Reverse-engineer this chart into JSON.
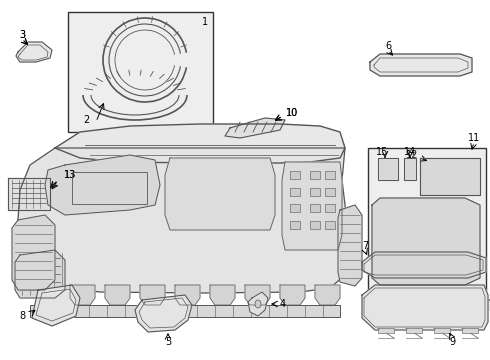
{
  "bg": "#ffffff",
  "lc": "#555555",
  "bc": "#000000",
  "box_bg": "#eeeeee",
  "fig_w": 4.9,
  "fig_h": 3.6,
  "dpi": 100
}
